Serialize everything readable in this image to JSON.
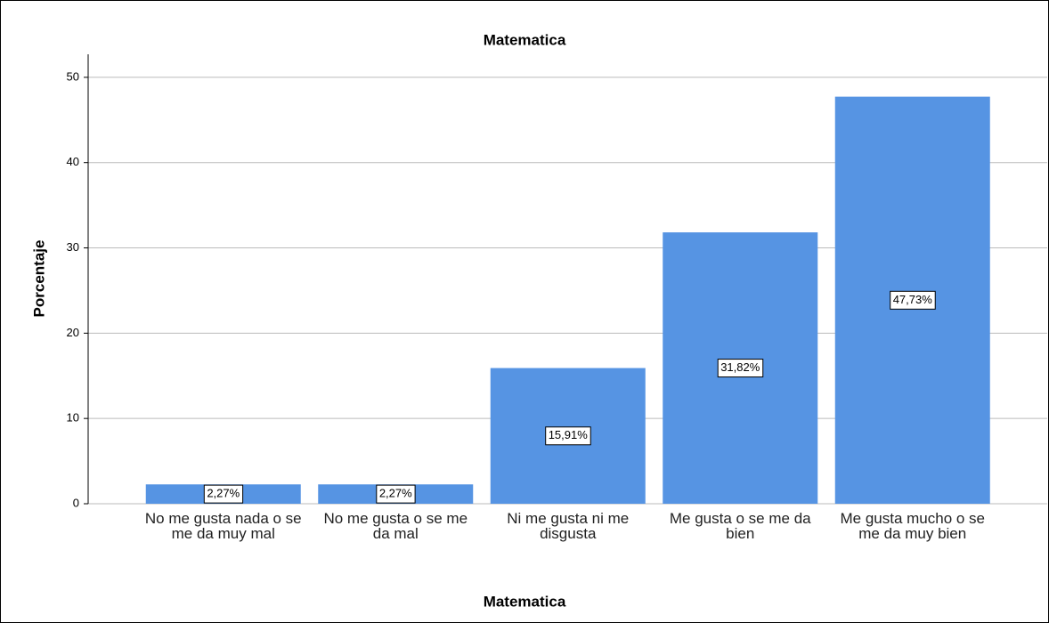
{
  "chart_data": {
    "type": "bar",
    "title": "Matematica",
    "x_label": "Matematica",
    "y_label": "Porcentaje",
    "categories": [
      "No me gusta nada o se me da muy mal",
      "No me gusta o se me da mal",
      "Ni me gusta ni me disgusta",
      "Me gusta o se me da bien",
      "Me gusta mucho o se me da muy bien"
    ],
    "values": [
      2.27,
      2.27,
      15.91,
      31.82,
      47.73
    ],
    "value_labels": [
      "2,27%",
      "2,27%",
      "15,91%",
      "31,82%",
      "47,73%"
    ],
    "color": "#5694e3",
    "ylim": [
      0,
      52.7
    ],
    "yticks": [
      0,
      10,
      20,
      30,
      40,
      50
    ],
    "grid": true
  }
}
